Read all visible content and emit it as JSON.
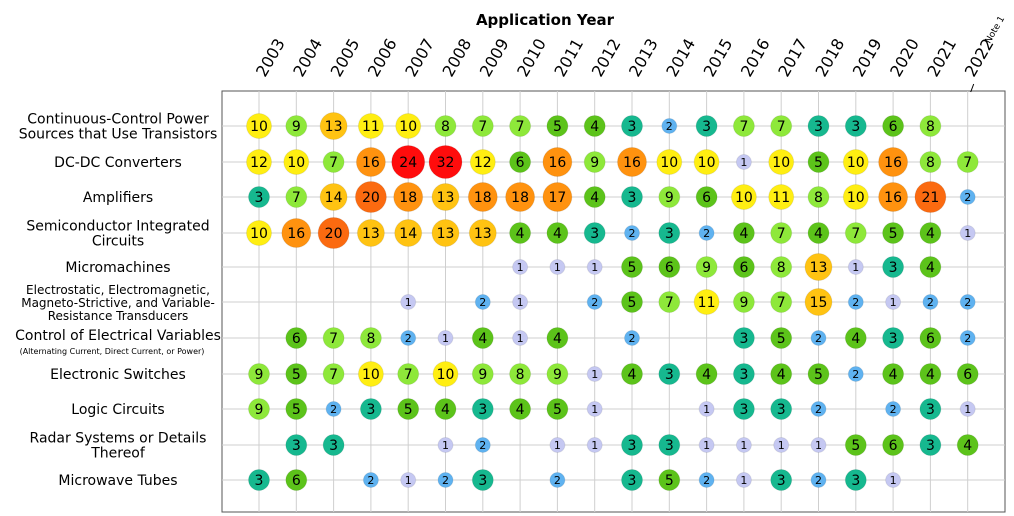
{
  "chart_data": {
    "type": "bubble-matrix",
    "title": "Application Year",
    "years": [
      "2003",
      "2004",
      "2005",
      "2006",
      "2007",
      "2008",
      "2009",
      "2010",
      "2011",
      "2012",
      "2013",
      "2014",
      "2015",
      "2016",
      "2017",
      "2018",
      "2019",
      "2020",
      "2021",
      "2022"
    ],
    "year_note": {
      "year": "2022",
      "text": "Note 1"
    },
    "categories": [
      {
        "label": [
          "Continuous-Control Power",
          "Sources that Use Transistors"
        ],
        "values": [
          10,
          9,
          13,
          11,
          10,
          8,
          7,
          7,
          5,
          4,
          3,
          2,
          3,
          7,
          7,
          3,
          3,
          6,
          8,
          null
        ]
      },
      {
        "label": [
          "DC-DC Converters"
        ],
        "values": [
          12,
          10,
          7,
          16,
          24,
          32,
          12,
          6,
          16,
          9,
          16,
          10,
          10,
          1,
          10,
          5,
          10,
          16,
          8,
          7
        ]
      },
      {
        "label": [
          "Amplifiers"
        ],
        "values": [
          3,
          7,
          14,
          20,
          18,
          13,
          18,
          18,
          17,
          4,
          3,
          9,
          6,
          10,
          11,
          8,
          10,
          16,
          21,
          2
        ]
      },
      {
        "label": [
          "Semiconductor Integrated",
          "Circuits"
        ],
        "values": [
          10,
          16,
          20,
          13,
          14,
          13,
          13,
          4,
          4,
          3,
          2,
          3,
          2,
          4,
          7,
          4,
          7,
          5,
          4,
          1
        ]
      },
      {
        "label": [
          "Micromachines"
        ],
        "values": [
          null,
          null,
          null,
          null,
          null,
          null,
          null,
          1,
          1,
          1,
          5,
          6,
          9,
          6,
          8,
          13,
          1,
          3,
          4,
          null
        ]
      },
      {
        "label": [
          "Electrostatic, Electromagnetic,",
          "Magneto-Strictive, and Variable-",
          "Resistance Transducers"
        ],
        "values": [
          null,
          null,
          null,
          null,
          1,
          null,
          2,
          1,
          null,
          2,
          5,
          7,
          11,
          9,
          7,
          15,
          2,
          1,
          2,
          2
        ]
      },
      {
        "label": [
          "Control of Electrical Variables"
        ],
        "sublabel": "(Alternating Current, Direct Current, or Power)",
        "values": [
          null,
          6,
          7,
          8,
          2,
          1,
          4,
          1,
          4,
          null,
          2,
          null,
          null,
          3,
          5,
          2,
          4,
          3,
          6,
          2
        ]
      },
      {
        "label": [
          "Electronic Switches"
        ],
        "values": [
          9,
          5,
          7,
          10,
          7,
          10,
          9,
          8,
          9,
          1,
          4,
          3,
          4,
          3,
          4,
          5,
          2,
          4,
          4,
          6
        ]
      },
      {
        "label": [
          "Logic Circuits"
        ],
        "values": [
          9,
          5,
          2,
          3,
          5,
          4,
          3,
          4,
          5,
          1,
          null,
          null,
          1,
          3,
          3,
          2,
          null,
          2,
          3,
          1
        ]
      },
      {
        "label": [
          "Radar Systems or Details",
          "Thereof"
        ],
        "values": [
          null,
          3,
          3,
          null,
          null,
          1,
          2,
          null,
          1,
          1,
          3,
          3,
          1,
          1,
          1,
          1,
          5,
          6,
          3,
          4
        ]
      },
      {
        "label": [
          "Microwave Tubes"
        ],
        "values": [
          3,
          6,
          null,
          2,
          1,
          2,
          3,
          null,
          2,
          null,
          3,
          5,
          2,
          1,
          3,
          2,
          3,
          1,
          null,
          null
        ]
      }
    ],
    "color_scale": [
      {
        "max": 1,
        "color": "#c5c8f2"
      },
      {
        "max": 2,
        "color": "#5fb2f0"
      },
      {
        "max": 3,
        "color": "#16b88f"
      },
      {
        "max": 6,
        "color": "#5cc31a"
      },
      {
        "max": 9,
        "color": "#8ee83a"
      },
      {
        "max": 12,
        "color": "#ffee12"
      },
      {
        "max": 15,
        "color": "#ffc312"
      },
      {
        "max": 18,
        "color": "#ff920f"
      },
      {
        "max": 21,
        "color": "#fb6a10"
      },
      {
        "max": 999,
        "color": "#ff0c0c"
      }
    ]
  }
}
